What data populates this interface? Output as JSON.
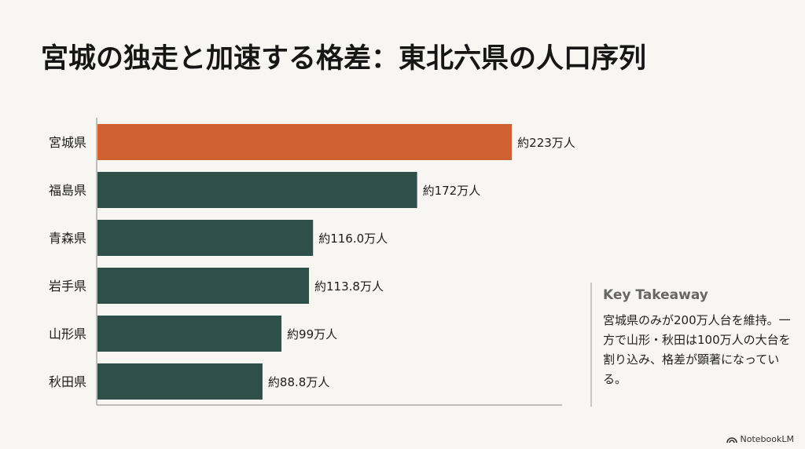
{
  "title": "宮城の独走と加速する格差：東北六県の人口序列",
  "chart_data": {
    "type": "bar",
    "orientation": "horizontal",
    "categories": [
      "宮城県",
      "福島県",
      "青森県",
      "岩手県",
      "山形県",
      "秋田県"
    ],
    "values": [
      223,
      172,
      116.0,
      113.8,
      99,
      88.8
    ],
    "data_labels": [
      "約223万人",
      "約172万人",
      "約116.0万人",
      "約113.8万人",
      "約99万人",
      "約88.8万人"
    ],
    "unit": "万人",
    "xlim": [
      0,
      250
    ],
    "grid": false,
    "highlight_index": 0,
    "colors": {
      "highlight": "#cf6230",
      "default": "#2f4f4a"
    }
  },
  "takeaway": {
    "title": "Key Takeaway",
    "body": "宮城県のみが200万人台を維持。一方で山形・秋田は100万人の大台を割り込み、格差が顕著になっている。"
  },
  "brand": {
    "label": "NotebookLM",
    "icon": "notebooklm-logo-icon"
  }
}
